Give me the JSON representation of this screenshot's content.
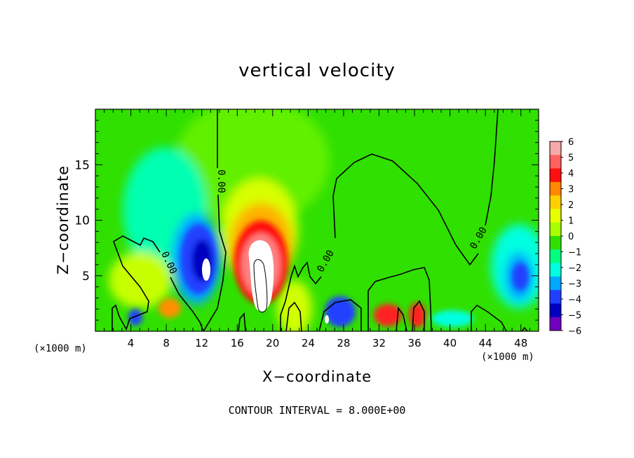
{
  "chart_data": {
    "type": "heatmap",
    "title": "vertical velocity",
    "xlabel": "X−coordinate",
    "ylabel": "Z−coordinate",
    "x_unit_label": "(×1000 m)",
    "x_ticks": [
      "4",
      "8",
      "12",
      "16",
      "20",
      "24",
      "28",
      "32",
      "36",
      "40",
      "44",
      "48"
    ],
    "y_ticks": [
      "5",
      "10",
      "15"
    ],
    "xlim": [
      0,
      50
    ],
    "ylim": [
      0,
      20
    ],
    "contour_label": "0.00",
    "contour_interval_text": "CONTOUR INTERVAL = 8.000E+00",
    "colorbar": {
      "labels": [
        "6",
        "5",
        "4",
        "3",
        "2",
        "1",
        "0",
        "−1",
        "−2",
        "−3",
        "−4",
        "−5",
        "−6"
      ],
      "colors": [
        "#f7a8a8",
        "#ff6060",
        "#ff1010",
        "#ff8800",
        "#ffd000",
        "#e8ff00",
        "#a8ff00",
        "#30e000",
        "#00ff80",
        "#00ffe0",
        "#00a8ff",
        "#2040ff",
        "#0000c0",
        "#7000c0"
      ]
    },
    "features": [
      {
        "name": "updraft-core",
        "x": 19,
        "z": 6,
        "level": 6
      },
      {
        "name": "downdraft-core",
        "x": 11.5,
        "z": 5.5,
        "level": -5
      },
      {
        "name": "downdraft-small",
        "x": 26.5,
        "z": 1.5,
        "level": -5
      },
      {
        "name": "updraft-low",
        "x": 34,
        "z": 1.5,
        "level": 4
      },
      {
        "name": "updraft-low",
        "x": 36.5,
        "z": 1.5,
        "level": 4
      },
      {
        "name": "downdraft-right",
        "x": 47.5,
        "z": 5,
        "level": -3
      }
    ]
  }
}
